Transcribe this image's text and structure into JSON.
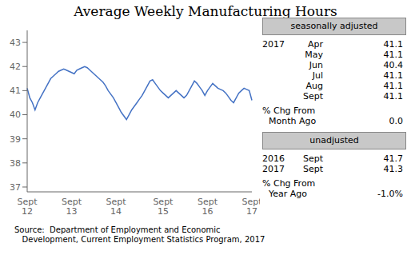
{
  "chart_data": {
    "type": "line",
    "title": "Average Weekly Manufacturing Hours",
    "categories": [
      "Sept\n12",
      null,
      null,
      null,
      null,
      null,
      null,
      null,
      null,
      null,
      null,
      null,
      null,
      null,
      null,
      null,
      null,
      "Sept\n13",
      null,
      null,
      null,
      null,
      null,
      null,
      null,
      null,
      null,
      null,
      null,
      null,
      null,
      null,
      null,
      null,
      "Sept\n14",
      null,
      null,
      null,
      null,
      null,
      null,
      null,
      null,
      null,
      null,
      null,
      null,
      null,
      null,
      null,
      null,
      null,
      "Sept\n15",
      null,
      null,
      null,
      null,
      null,
      null,
      null,
      null,
      null,
      null,
      null,
      null,
      null,
      null,
      null,
      null,
      "Sept\n16",
      null,
      null,
      null,
      null,
      null,
      null,
      null,
      null,
      null,
      null,
      null,
      null,
      null,
      null,
      null,
      null,
      "Sept\n17"
    ],
    "values": [
      41.1,
      40.7,
      40.5,
      40.2,
      40.5,
      40.7,
      40.9,
      41.1,
      41.3,
      41.5,
      41.6,
      41.7,
      41.8,
      41.85,
      41.9,
      41.85,
      41.8,
      41.75,
      41.7,
      41.85,
      41.9,
      41.95,
      42.0,
      41.95,
      41.85,
      41.75,
      41.65,
      41.55,
      41.45,
      41.35,
      41.2,
      41.0,
      40.85,
      40.7,
      40.5,
      40.3,
      40.1,
      39.95,
      39.8,
      40.0,
      40.2,
      40.35,
      40.5,
      40.65,
      40.8,
      41.0,
      41.2,
      41.4,
      41.45,
      41.3,
      41.15,
      41.0,
      40.9,
      40.8,
      40.7,
      40.8,
      40.9,
      41.0,
      40.9,
      40.8,
      40.7,
      40.8,
      41.0,
      41.2,
      41.4,
      41.3,
      41.15,
      41.0,
      40.8,
      41.0,
      41.15,
      41.3,
      41.2,
      41.1,
      41.05,
      41.0,
      40.9,
      40.75,
      40.6,
      40.5,
      40.7,
      40.9,
      41.0,
      41.1,
      41.05,
      41.0,
      40.6
    ],
    "color": "#4472c4",
    "ylim": [
      36.8,
      43.5
    ],
    "yticks": [
      37,
      38,
      39,
      40,
      41,
      42,
      43
    ],
    "grid": false,
    "annotations": {
      "seasonally_adjusted": {
        "label": "seasonally adjusted",
        "year": "2017",
        "rows": [
          {
            "month": "Apr",
            "value": "41.1"
          },
          {
            "month": "May",
            "value": "41.1"
          },
          {
            "month": "Jun",
            "value": "40.4"
          },
          {
            "month": "Jul",
            "value": "41.1"
          },
          {
            "month": "Aug",
            "value": "41.1"
          },
          {
            "month": "Sept",
            "value": "41.1"
          }
        ],
        "change_label": "% Chg From",
        "change_period": "Month Ago",
        "change": "0.0"
      },
      "unadjusted": {
        "label": "unadjusted",
        "rows": [
          {
            "year": "2016",
            "month": "Sept",
            "value": "41.7"
          },
          {
            "year": "2017",
            "month": "Sept",
            "value": "41.3"
          }
        ],
        "change_label": "% Chg From",
        "change_period": "Year Ago",
        "change": "-1.0%"
      },
      "source": [
        "Source:  Department of Employment and Economic",
        "   Development, Current Employment Statistics Program, 2017"
      ]
    }
  }
}
